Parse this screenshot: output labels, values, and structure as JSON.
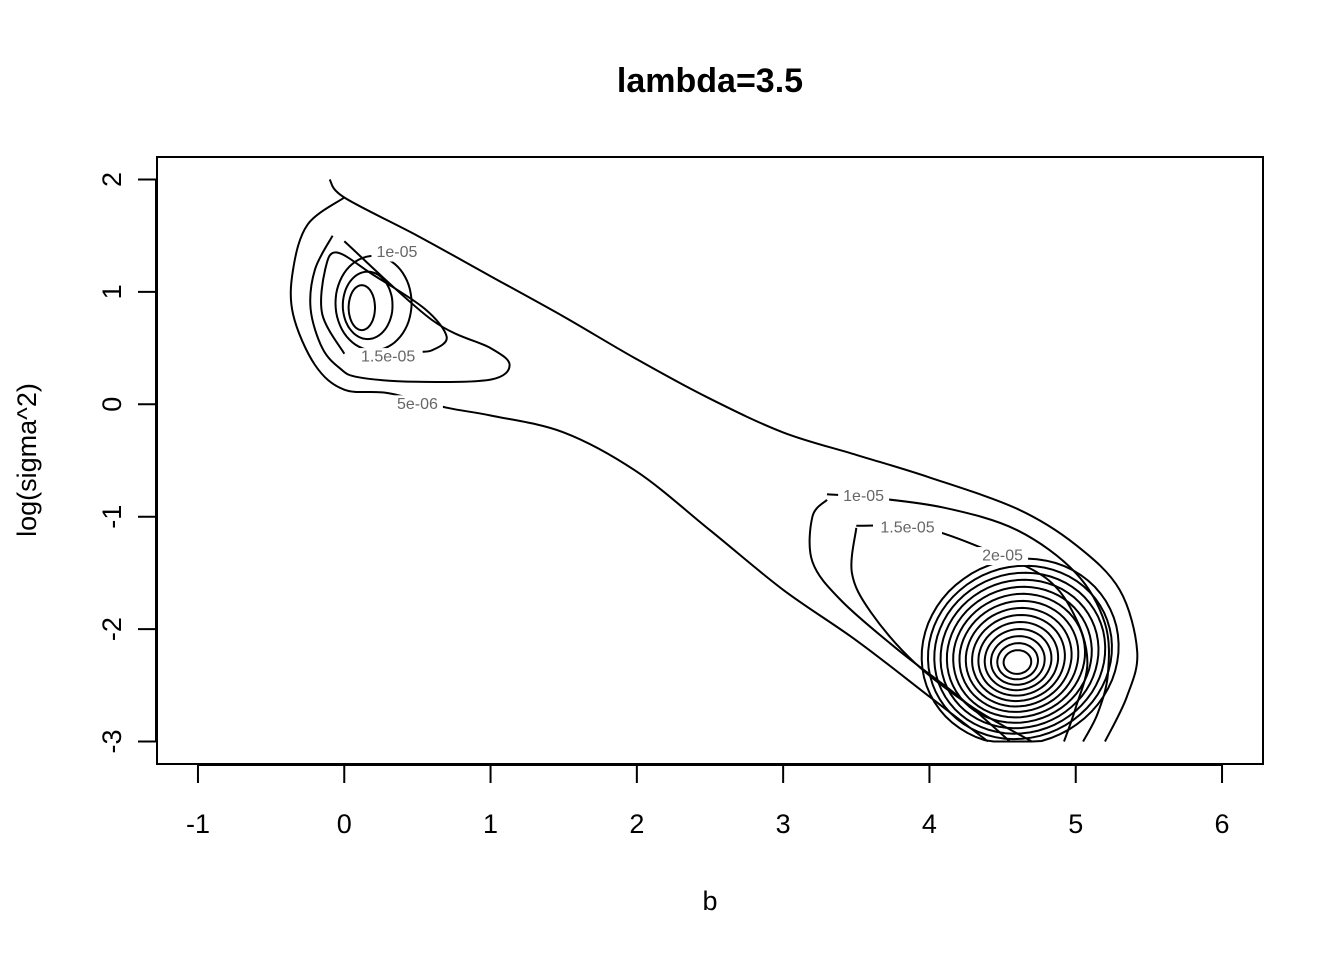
{
  "chart_data": {
    "type": "contour",
    "title": "lambda=3.5",
    "xlabel": "b",
    "ylabel": "log(sigma^2)",
    "xlim": [
      -1.28,
      6.28
    ],
    "ylim": [
      -3.2,
      2.2
    ],
    "x_ticks": [
      -1,
      0,
      1,
      2,
      3,
      4,
      5,
      6
    ],
    "y_ticks": [
      2,
      1,
      0,
      -1,
      -2,
      -3
    ],
    "x_tick_labels": [
      "-1",
      "0",
      "1",
      "2",
      "3",
      "4",
      "5",
      "6"
    ],
    "y_tick_labels": [
      "2",
      "1",
      "0",
      "-1",
      "-2",
      "-3"
    ],
    "contours": [
      {
        "level": "5e-06",
        "points": [
          [
            -0.1,
            2.0
          ],
          [
            0.0,
            1.84
          ],
          [
            0.5,
            1.5
          ],
          [
            1.0,
            1.14
          ],
          [
            1.5,
            0.78
          ],
          [
            2.0,
            0.4
          ],
          [
            2.5,
            0.05
          ],
          [
            3.0,
            -0.25
          ],
          [
            3.5,
            -0.45
          ],
          [
            4.0,
            -0.65
          ],
          [
            4.6,
            -0.93
          ],
          [
            5.0,
            -1.25
          ],
          [
            5.3,
            -1.65
          ],
          [
            5.42,
            -2.2
          ],
          [
            5.35,
            -2.6
          ],
          [
            5.2,
            -3.0
          ]
        ],
        "points2": [
          [
            4.4,
            -3.0
          ],
          [
            4.0,
            -2.6
          ],
          [
            3.5,
            -2.1
          ],
          [
            3.0,
            -1.65
          ],
          [
            2.5,
            -1.12
          ],
          [
            2.0,
            -0.6
          ],
          [
            1.5,
            -0.25
          ],
          [
            1.0,
            -0.1
          ],
          [
            0.7,
            -0.03
          ],
          [
            0.3,
            0.1
          ],
          [
            0.0,
            0.13
          ],
          [
            -0.2,
            0.35
          ],
          [
            -0.35,
            0.8
          ],
          [
            -0.35,
            1.2
          ],
          [
            -0.25,
            1.6
          ],
          [
            0.0,
            1.84
          ]
        ]
      },
      {
        "level": "1e-05",
        "points": [
          [
            -0.08,
            1.5
          ],
          [
            -0.2,
            1.2
          ],
          [
            -0.23,
            0.85
          ],
          [
            -0.15,
            0.5
          ],
          [
            -0.03,
            0.32
          ],
          [
            0.1,
            0.24
          ],
          [
            0.5,
            0.2
          ],
          [
            1.0,
            0.22
          ],
          [
            1.13,
            0.35
          ],
          [
            1.0,
            0.5
          ],
          [
            0.6,
            0.75
          ],
          [
            0.0,
            1.45
          ]
        ],
        "points2": [
          [
            3.3,
            -0.8
          ],
          [
            3.6,
            -0.83
          ],
          [
            4.1,
            -0.92
          ],
          [
            4.6,
            -1.12
          ],
          [
            5.0,
            -1.5
          ],
          [
            5.2,
            -1.95
          ],
          [
            5.22,
            -2.4
          ],
          [
            5.15,
            -2.75
          ],
          [
            5.05,
            -3.0
          ]
        ],
        "points3": [
          [
            4.55,
            -3.0
          ],
          [
            4.2,
            -2.6
          ],
          [
            3.8,
            -2.2
          ],
          [
            3.4,
            -1.75
          ],
          [
            3.2,
            -1.4
          ],
          [
            3.2,
            -1.0
          ],
          [
            3.3,
            -0.85
          ]
        ]
      },
      {
        "level": "1.5e-05",
        "points": [
          [
            0.0,
            0.45
          ],
          [
            -0.15,
            0.8
          ],
          [
            -0.13,
            1.2
          ],
          [
            -0.05,
            1.35
          ],
          [
            0.2,
            1.15
          ],
          [
            0.55,
            0.85
          ],
          [
            0.7,
            0.6
          ],
          [
            0.6,
            0.48
          ],
          [
            0.5,
            0.47
          ]
        ],
        "points2": [
          [
            3.5,
            -1.08
          ],
          [
            3.95,
            -1.1
          ],
          [
            4.4,
            -1.3
          ],
          [
            4.8,
            -1.55
          ],
          [
            5.0,
            -1.9
          ],
          [
            5.08,
            -2.3
          ],
          [
            5.0,
            -2.7
          ],
          [
            4.92,
            -3.0
          ]
        ],
        "points3": [
          [
            4.7,
            -3.0
          ],
          [
            4.3,
            -2.7
          ],
          [
            3.9,
            -2.3
          ],
          [
            3.6,
            -1.85
          ],
          [
            3.47,
            -1.5
          ],
          [
            3.5,
            -1.1
          ]
        ]
      }
    ],
    "contour_labels": [
      {
        "text": "1e-05",
        "x": 0.36,
        "y": 1.35
      },
      {
        "text": "1.5e-05",
        "x": 0.3,
        "y": 0.42
      },
      {
        "text": "5e-06",
        "x": 0.5,
        "y": 0.0
      },
      {
        "text": "1e-05",
        "x": 3.55,
        "y": -0.82
      },
      {
        "text": "1.5e-05",
        "x": 3.85,
        "y": -1.1
      },
      {
        "text": "2e-05",
        "x": 4.5,
        "y": -1.35
      }
    ]
  }
}
